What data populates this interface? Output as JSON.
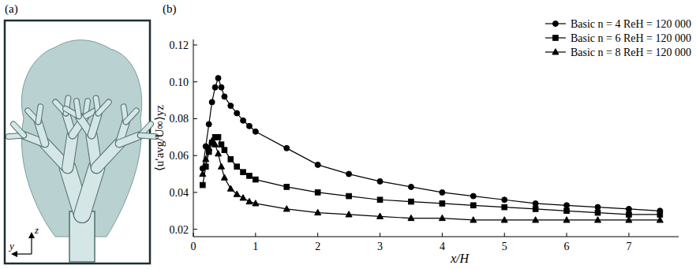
{
  "chart_data": {
    "type": "line",
    "xlabel": "x/H",
    "ylabel": "⟨u′avg/U∞⟩yz",
    "x": [
      0.15,
      0.2,
      0.25,
      0.3,
      0.35,
      0.4,
      0.45,
      0.5,
      0.6,
      0.7,
      0.8,
      0.9,
      1,
      1.5,
      2,
      2.5,
      3,
      3.5,
      4,
      4.5,
      5,
      5.5,
      6,
      6.5,
      7,
      7.5
    ],
    "xlim": [
      0,
      7.8
    ],
    "xticks": [
      0,
      1,
      2,
      3,
      4,
      5,
      6,
      7
    ],
    "ylim": [
      0.016,
      0.123
    ],
    "yticks": [
      0.02,
      0.04,
      0.06,
      0.08,
      {
        "value": 0.1,
        "label": "0.10"
      },
      0.12
    ],
    "legend": "upper right",
    "series": [
      {
        "name": "Basic n = 4  ReH = 120 000",
        "color": "#000000",
        "marker": "circle",
        "values": [
          0.053,
          0.065,
          0.077,
          0.089,
          0.097,
          0.102,
          0.097,
          0.092,
          0.087,
          0.083,
          0.079,
          0.076,
          0.073,
          0.064,
          0.055,
          0.05,
          0.046,
          0.043,
          0.04,
          0.038,
          0.036,
          0.034,
          0.033,
          0.032,
          0.031,
          0.03
        ]
      },
      {
        "name": "Basic n = 6  ReH = 120 000",
        "color": "#000000",
        "marker": "square",
        "values": [
          0.044,
          0.054,
          0.062,
          0.067,
          0.07,
          0.07,
          0.066,
          0.063,
          0.058,
          0.054,
          0.051,
          0.049,
          0.047,
          0.043,
          0.04,
          0.038,
          0.036,
          0.035,
          0.034,
          0.033,
          0.032,
          0.031,
          0.03,
          0.029,
          0.028,
          0.028
        ]
      },
      {
        "name": "Basic n = 8  ReH = 120 000",
        "color": "#000000",
        "marker": "triangle",
        "values": [
          0.05,
          0.058,
          0.064,
          0.068,
          0.066,
          0.061,
          0.054,
          0.048,
          0.042,
          0.039,
          0.037,
          0.035,
          0.034,
          0.031,
          0.029,
          0.028,
          0.027,
          0.026,
          0.026,
          0.025,
          0.025,
          0.025,
          0.025,
          0.025,
          0.025,
          0.025
        ]
      }
    ]
  },
  "panels": [
    {
      "label": "(a)",
      "axis_labels": [
        "y",
        "z"
      ]
    },
    {
      "label": "(b)"
    }
  ]
}
